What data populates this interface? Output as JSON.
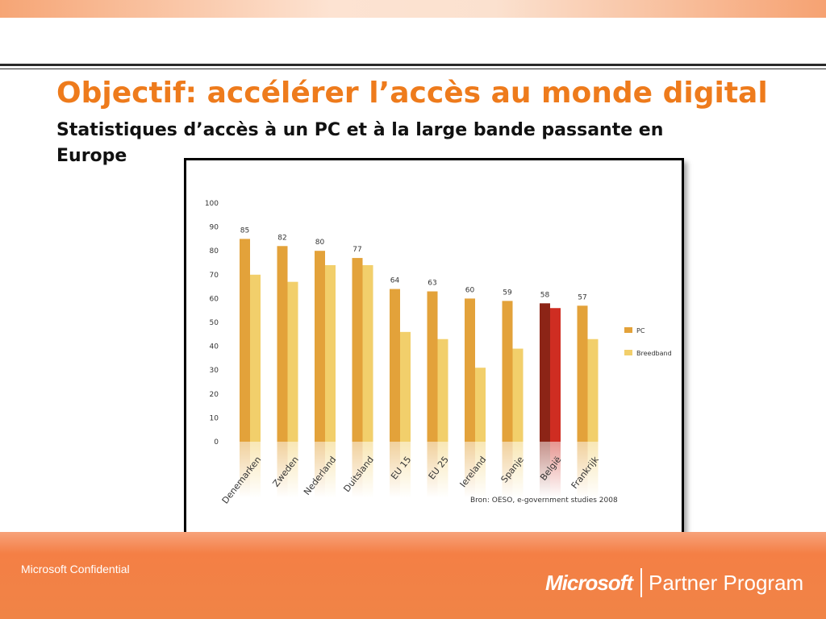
{
  "slide": {
    "title": "Objectif: accélérer l’accès au monde digital",
    "subtitle": "Statistiques d’accès à un PC et à la large bande passante en Europe",
    "footer_left": "Microsoft Confidential",
    "brand_microsoft": "Microsoft",
    "brand_program": "Partner Program"
  },
  "chart_data": {
    "type": "bar",
    "categories": [
      "Denemarken",
      "Zweden",
      "Nederland",
      "Duitsland",
      "EU 15",
      "EU 25",
      "Iereland",
      "Spanje",
      "België",
      "Frankrijk"
    ],
    "series": [
      {
        "name": "PC",
        "values": [
          85,
          82,
          80,
          77,
          64,
          63,
          60,
          59,
          58,
          57
        ],
        "color": "#e3a23a"
      },
      {
        "name": "Breedband",
        "values": [
          70,
          67,
          74,
          74,
          46,
          43,
          31,
          39,
          56,
          43
        ],
        "color": "#f2cf6b"
      }
    ],
    "highlight": {
      "category": "België",
      "colors": [
        "#8c2416",
        "#cf2d22"
      ]
    },
    "data_labels": [
      "85",
      "82",
      "80",
      "77",
      "64",
      "63",
      "60",
      "59",
      "58",
      "57"
    ],
    "yticks": [
      "0",
      "10",
      "20",
      "30",
      "40",
      "50",
      "60",
      "70",
      "80",
      "90",
      "100"
    ],
    "ylim": [
      0,
      100
    ],
    "legend_position": "right",
    "source": "Bron: OESO,    e-government studies 2008",
    "grid": false
  }
}
